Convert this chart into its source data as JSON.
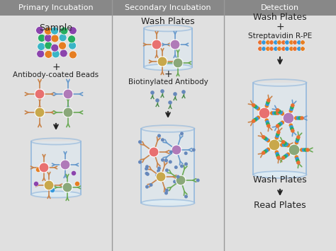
{
  "col_headers": [
    "Primary Incubation",
    "Secondary Incubation",
    "Detection"
  ],
  "header_bg": "#888888",
  "header_text_color": "#ffffff",
  "bg_color": "#e0e0e0",
  "divider_color": "#999999",
  "arrow_color": "#222222",
  "text_color": "#222222",
  "container_edge_color": "#99bbdd",
  "container_fill_color": "#ddeef8",
  "sample_dot_colors": [
    "#8b44ad",
    "#e67e22",
    "#3ab5c6",
    "#8b44ad",
    "#e67e22",
    "#3ab5c6",
    "#27ae60",
    "#8b44ad",
    "#e67e22",
    "#3ab5c6",
    "#27ae60",
    "#8b44ad",
    "#e67e22",
    "#3ab5c6",
    "#27ae60",
    "#8b44ad",
    "#e67e22",
    "#3ab5c6",
    "#27ae60",
    "#8b44ad"
  ],
  "bead_data": [
    {
      "color": "#e87070",
      "arm_color": "#c8834a",
      "r": 7
    },
    {
      "color": "#b07ab8",
      "arm_color": "#6699cc",
      "r": 7
    },
    {
      "color": "#c8a84b",
      "arm_color": "#c8834a",
      "r": 7
    },
    {
      "color": "#8aa87a",
      "arm_color": "#6aaa55",
      "r": 7
    }
  ],
  "bio_antibody_color": "#6688bb",
  "bio_arm_color": "#4a8a4a",
  "strep_colors": [
    "#e87030",
    "#e67e22",
    "#3498db",
    "#e87030",
    "#e67e22",
    "#3498db",
    "#e87030",
    "#e67e22",
    "#3498db",
    "#e87030",
    "#e67e22",
    "#3498db"
  ]
}
